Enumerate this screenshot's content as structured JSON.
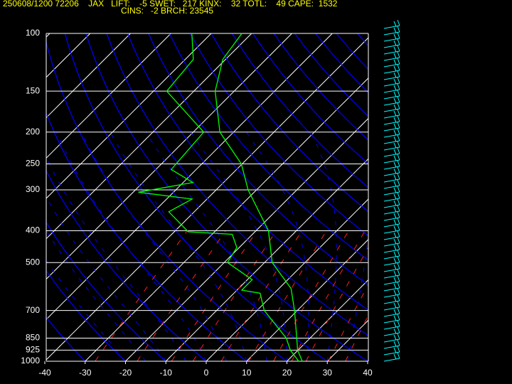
{
  "header": {
    "line1": "250608/1200 72206    JAX   LIFT:    -5 SWET:   217 KINX:    32 TOTL:    49 CAPE:  1532",
    "line2": "CINS:   -2 BRCH: 23545"
  },
  "chart_data": {
    "type": "skewt",
    "xlim": [
      -40,
      40
    ],
    "xticks": [
      -40,
      -30,
      -20,
      -10,
      0,
      10,
      20,
      30,
      40
    ],
    "ylim": [
      1000,
      100
    ],
    "log_y": true,
    "yticks": [
      100,
      150,
      200,
      250,
      300,
      400,
      500,
      700,
      850,
      925,
      1000
    ],
    "grid": true,
    "series": [
      {
        "color": "#00ff00",
        "y": [
          1000,
          925,
          850,
          700,
          600,
          500,
          400,
          300,
          250,
          200,
          150,
          120,
          100
        ],
        "values": [
          23.8,
          19.9,
          16.7,
          9.3,
          3.0,
          -8.1,
          -16.9,
          -32.1,
          -40.2,
          -53.4,
          -64.7,
          -70.7,
          -72.4
        ]
      },
      {
        "color": "#00ff00",
        "y": [
          1000,
          925,
          850,
          700,
          620,
          607,
          564,
          500,
          450,
          410,
          403,
          350,
          320,
          305,
          285,
          260,
          200,
          150,
          120,
          100
        ],
        "values": [
          22.9,
          18.1,
          14.1,
          1.8,
          -3.5,
          -8.8,
          -8.8,
          -19.2,
          -20.6,
          -25.0,
          -36.5,
          -46.3,
          -43.7,
          -58.7,
          -47.6,
          -56.2,
          -57.4,
          -76.7,
          -78.0,
          -84.8
        ]
      }
    ]
  }
}
